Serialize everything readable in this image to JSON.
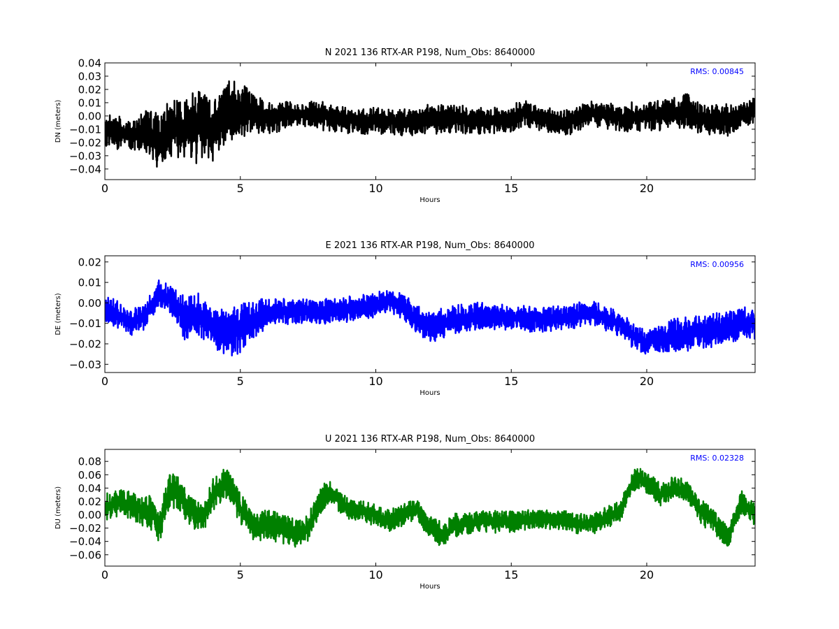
{
  "chart_data": [
    {
      "type": "line",
      "title": "N 2021 136 RTX-AR  P198, Num_Obs: 8640000",
      "xlabel": "Hours",
      "ylabel": "DN (meters)",
      "xlim": [
        0,
        24
      ],
      "ylim": [
        -0.048,
        0.04
      ],
      "xticks": [
        0,
        5,
        10,
        15,
        20
      ],
      "xtick_labels": [
        "0",
        "5",
        "10",
        "15",
        "20"
      ],
      "yticks": [
        -0.04,
        -0.03,
        -0.02,
        -0.01,
        0.0,
        0.01,
        0.02,
        0.03,
        0.04
      ],
      "ytick_labels": [
        "−0.04",
        "−0.03",
        "−0.02",
        "−0.01",
        "0.00",
        "0.01",
        "0.02",
        "0.03",
        "0.04"
      ],
      "annotation": "RMS:  0.00845",
      "color": "#000000",
      "annotation_color": "#0000ff",
      "grid": false,
      "series": [
        {
          "x": [
            0,
            0.5,
            0.8,
            1.0,
            1.5,
            2.0,
            2.5,
            3.0,
            3.5,
            4.0,
            4.5,
            5.0,
            5.5,
            6.0,
            7.0,
            8.0,
            9.0,
            9.5,
            10.0,
            11.0,
            12.0,
            13.0,
            14.0,
            15.0,
            15.5,
            16.0,
            17.0,
            18.0,
            19.0,
            20.0,
            21.0,
            21.5,
            22.0,
            22.5,
            23.0,
            23.5,
            24.0
          ],
          "center": [
            -0.01,
            -0.012,
            -0.015,
            -0.015,
            -0.01,
            -0.02,
            -0.008,
            -0.01,
            -0.008,
            -0.01,
            0.002,
            0.005,
            0.003,
            -0.002,
            0.002,
            0.0,
            -0.003,
            -0.005,
            -0.003,
            -0.005,
            -0.003,
            -0.002,
            -0.004,
            -0.003,
            0.003,
            -0.002,
            -0.005,
            0.002,
            -0.002,
            0.0,
            0.002,
            0.003,
            -0.002,
            -0.003,
            -0.003,
            0.0,
            0.004
          ],
          "amp": [
            0.012,
            0.012,
            0.01,
            0.011,
            0.016,
            0.02,
            0.022,
            0.024,
            0.026,
            0.025,
            0.022,
            0.021,
            0.016,
            0.012,
            0.01,
            0.01,
            0.01,
            0.01,
            0.01,
            0.01,
            0.011,
            0.011,
            0.01,
            0.01,
            0.01,
            0.009,
            0.01,
            0.009,
            0.01,
            0.011,
            0.012,
            0.013,
            0.012,
            0.011,
            0.012,
            0.01,
            0.01
          ]
        }
      ]
    },
    {
      "type": "line",
      "title": "E 2021 136 RTX-AR  P198, Num_Obs: 8640000",
      "xlabel": "Hours",
      "ylabel": "DE (meters)",
      "xlim": [
        0,
        24
      ],
      "ylim": [
        -0.034,
        0.023
      ],
      "xticks": [
        0,
        5,
        10,
        15,
        20
      ],
      "xtick_labels": [
        "0",
        "5",
        "10",
        "15",
        "20"
      ],
      "yticks": [
        -0.03,
        -0.02,
        -0.01,
        0.0,
        0.01,
        0.02
      ],
      "ytick_labels": [
        "−0.03",
        "−0.02",
        "−0.01",
        "0.00",
        "0.01",
        "0.02"
      ],
      "annotation": "RMS:  0.00956",
      "color": "#0000ff",
      "annotation_color": "#0000ff",
      "grid": false,
      "series": [
        {
          "x": [
            0,
            0.5,
            1.0,
            1.5,
            2.0,
            2.5,
            3.0,
            3.5,
            4.0,
            4.5,
            5.0,
            5.5,
            6.0,
            7.0,
            8.0,
            9.0,
            10.0,
            10.5,
            11.0,
            11.5,
            12.0,
            13.0,
            14.0,
            15.0,
            16.0,
            17.0,
            18.0,
            19.0,
            19.5,
            20.0,
            21.0,
            22.0,
            23.0,
            23.5,
            24.0
          ],
          "center": [
            -0.002,
            -0.006,
            -0.01,
            -0.006,
            0.004,
            0.001,
            -0.008,
            -0.006,
            -0.012,
            -0.015,
            -0.012,
            -0.01,
            -0.004,
            -0.004,
            -0.004,
            -0.003,
            -0.001,
            0.001,
            -0.002,
            -0.008,
            -0.012,
            -0.008,
            -0.006,
            -0.007,
            -0.008,
            -0.007,
            -0.005,
            -0.01,
            -0.016,
            -0.019,
            -0.016,
            -0.014,
            -0.012,
            -0.01,
            -0.01
          ],
          "amp": [
            0.007,
            0.006,
            0.006,
            0.007,
            0.007,
            0.007,
            0.011,
            0.011,
            0.01,
            0.011,
            0.012,
            0.01,
            0.007,
            0.006,
            0.006,
            0.006,
            0.006,
            0.005,
            0.006,
            0.007,
            0.007,
            0.007,
            0.007,
            0.006,
            0.006,
            0.006,
            0.006,
            0.006,
            0.006,
            0.006,
            0.008,
            0.008,
            0.008,
            0.008,
            0.008
          ]
        }
      ]
    },
    {
      "type": "line",
      "title": "U 2021 136 RTX-AR  P198, Num_Obs: 8640000",
      "xlabel": "Hours",
      "ylabel": "DU (meters)",
      "xlim": [
        0,
        24
      ],
      "ylim": [
        -0.077,
        0.098
      ],
      "xticks": [
        0,
        5,
        10,
        15,
        20
      ],
      "xtick_labels": [
        "0",
        "5",
        "10",
        "15",
        "20"
      ],
      "yticks": [
        -0.06,
        -0.04,
        -0.02,
        0.0,
        0.02,
        0.04,
        0.06,
        0.08
      ],
      "ytick_labels": [
        "−0.06",
        "−0.04",
        "−0.02",
        "0.00",
        "0.02",
        "0.04",
        "0.06",
        "0.08"
      ],
      "annotation": "RMS:  0.02328",
      "color": "#008000",
      "annotation_color": "#0000ff",
      "grid": false,
      "series": [
        {
          "x": [
            0,
            0.5,
            1.0,
            1.5,
            1.8,
            2.0,
            2.4,
            2.8,
            3.2,
            3.6,
            4.0,
            4.5,
            5.0,
            5.5,
            6.0,
            6.5,
            7.0,
            7.5,
            8.0,
            8.3,
            9.0,
            10.0,
            10.5,
            11.0,
            11.5,
            12.0,
            12.5,
            13.0,
            14.0,
            15.0,
            16.0,
            17.0,
            18.0,
            19.0,
            19.5,
            19.8,
            20.5,
            21.0,
            21.5,
            22.0,
            22.5,
            23.0,
            23.5,
            24.0
          ],
          "center": [
            0.01,
            0.02,
            0.015,
            0.005,
            0.0,
            -0.02,
            0.04,
            0.025,
            0.005,
            -0.005,
            0.03,
            0.05,
            0.01,
            -0.02,
            -0.015,
            -0.02,
            -0.03,
            -0.02,
            0.025,
            0.035,
            0.01,
            0.0,
            -0.01,
            0.0,
            0.01,
            -0.02,
            -0.03,
            -0.015,
            -0.01,
            -0.01,
            -0.005,
            -0.01,
            -0.015,
            0.005,
            0.05,
            0.055,
            0.03,
            0.04,
            0.035,
            0.005,
            -0.01,
            -0.035,
            0.02,
            0.0
          ],
          "amp": [
            0.02,
            0.02,
            0.02,
            0.025,
            0.025,
            0.025,
            0.028,
            0.025,
            0.022,
            0.022,
            0.024,
            0.024,
            0.024,
            0.022,
            0.022,
            0.022,
            0.022,
            0.02,
            0.02,
            0.02,
            0.016,
            0.016,
            0.016,
            0.016,
            0.016,
            0.016,
            0.018,
            0.018,
            0.016,
            0.016,
            0.015,
            0.015,
            0.015,
            0.016,
            0.016,
            0.016,
            0.016,
            0.016,
            0.016,
            0.018,
            0.018,
            0.016,
            0.018,
            0.016
          ]
        }
      ]
    }
  ]
}
